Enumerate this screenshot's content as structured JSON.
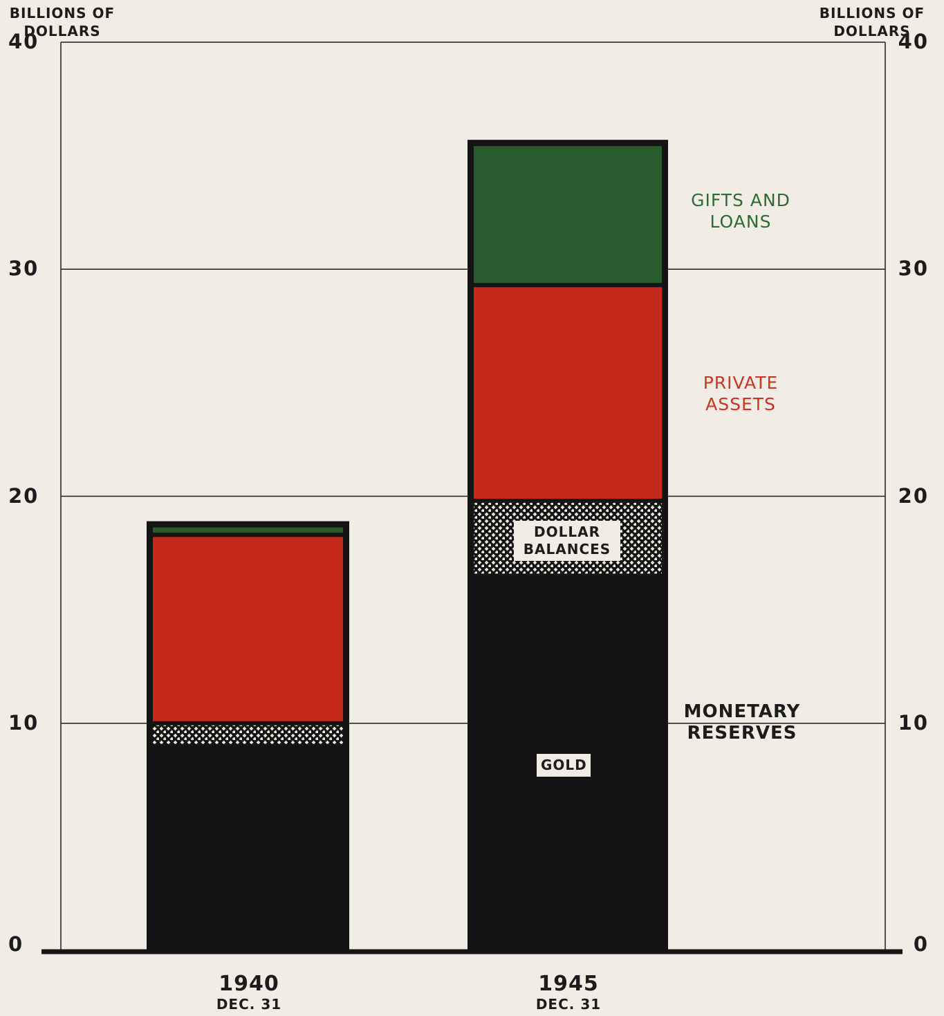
{
  "axis": {
    "left_title": "BILLIONS OF DOLLARS",
    "right_title": "BILLIONS OF DOLLARS",
    "ticks": [
      "0",
      "10",
      "20",
      "30",
      "40"
    ]
  },
  "colors": {
    "gold": "#141414",
    "dollar_balances": "#141414",
    "private_assets": "#c42a1c",
    "gifts_and_loans": "#275a2c",
    "background": "#f2ede4"
  },
  "labels": {
    "gifts": "GIFTS AND LOANS",
    "private": "PRIVATE ASSETS",
    "monetary": "MONETARY RESERVES",
    "dollar_balances": "DOLLAR BALANCES",
    "gold": "GOLD"
  },
  "categories": [
    {
      "year": "1940",
      "sub": "DEC. 31"
    },
    {
      "year": "1945",
      "sub": "DEC. 31"
    }
  ],
  "chart_data": {
    "type": "bar",
    "stacked": true,
    "categories": [
      "1940 DEC. 31",
      "1945 DEC. 31"
    ],
    "series": [
      {
        "name": "GOLD",
        "values": [
          9.0,
          16.5
        ]
      },
      {
        "name": "DOLLAR BALANCES",
        "values": [
          1.0,
          3.3
        ]
      },
      {
        "name": "PRIVATE ASSETS",
        "values": [
          8.3,
          9.5
        ]
      },
      {
        "name": "GIFTS AND LOANS",
        "values": [
          0.6,
          6.4
        ]
      }
    ],
    "ylabel": "BILLIONS OF DOLLARS",
    "ylim": [
      0,
      40
    ],
    "yticks": [
      0,
      10,
      20,
      30,
      40
    ],
    "grid": true,
    "legend": "inline-right"
  }
}
